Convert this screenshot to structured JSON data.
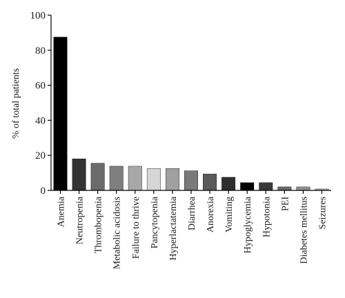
{
  "chart_data": {
    "type": "bar",
    "title": "",
    "xlabel": "",
    "ylabel": "% of total patients",
    "ylim": [
      0,
      100
    ],
    "yticks": [
      0,
      20,
      40,
      60,
      80,
      100
    ],
    "grid": false,
    "categories": [
      "Anemia",
      "Neutropenia",
      "Thrombopenia",
      "Metabolic acidosis",
      "Failure to thrive",
      "Pancytopenia",
      "Hyperlactatemia",
      "Diarrhea",
      "Anorexia",
      "Vomiting",
      "Hypoglycemia",
      "Hypotonia",
      "PEI",
      "Diabetes mellitus",
      "Seizures"
    ],
    "values": [
      87.5,
      18.0,
      15.5,
      13.8,
      13.8,
      12.5,
      12.5,
      11.2,
      9.4,
      7.5,
      4.4,
      4.4,
      2.0,
      2.0,
      0.8
    ],
    "colors": [
      "#000000",
      "#333333",
      "#6b6b6b",
      "#7f7f7f",
      "#a8a8a8",
      "#d6d6d6",
      "#a0a0a0",
      "#7a7a7a",
      "#5a5a5a",
      "#2e2e2e",
      "#000000",
      "#3a3a3a",
      "#6a6a6a",
      "#8f8f8f",
      "#b0b0b0"
    ]
  }
}
